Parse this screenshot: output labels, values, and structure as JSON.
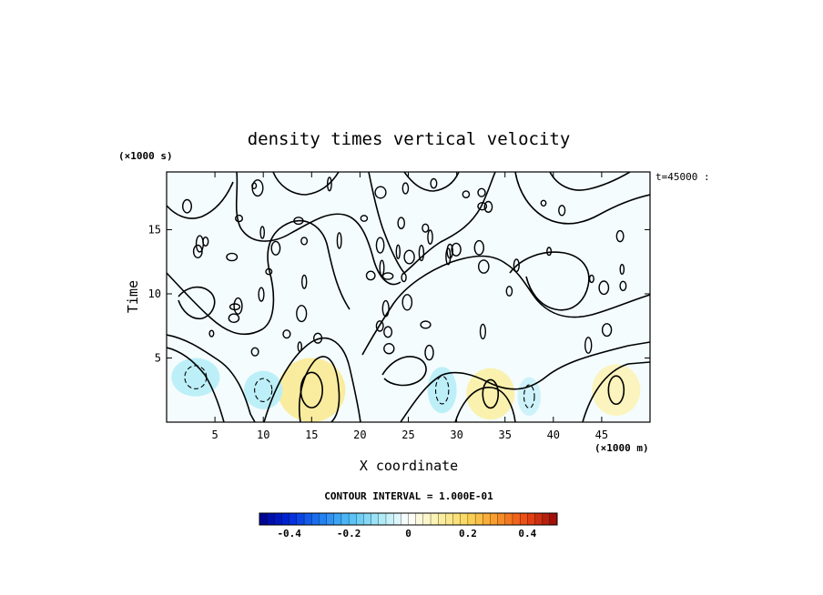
{
  "chart_data": {
    "type": "heatmap",
    "title": "density times vertical velocity",
    "xlabel": "X coordinate",
    "ylabel": "Time",
    "x_unit": "(×1000 m)",
    "y_unit": "(×1000 s)",
    "time_label": "t=45000 :",
    "contour_interval_label": "CONTOUR INTERVAL = 1.000E-01",
    "xlim": [
      0,
      50
    ],
    "ylim": [
      0,
      19.5
    ],
    "x_ticks": [
      5,
      10,
      15,
      20,
      25,
      30,
      35,
      40,
      45
    ],
    "y_ticks": [
      5,
      10,
      15
    ],
    "x_tick_labels": [
      "5",
      "10",
      "15",
      "20",
      "25",
      "30",
      "35",
      "40",
      "45"
    ],
    "y_tick_labels": [
      "5",
      "10",
      "15"
    ],
    "colorbar": {
      "min": -0.5,
      "max": 0.5,
      "ticks": [
        -0.4,
        -0.2,
        0,
        0.2,
        0.4
      ],
      "tick_labels": [
        "-0.4",
        "-0.2",
        "0",
        "0.2",
        "0.4"
      ]
    },
    "grid": false,
    "positive_regions": [
      {
        "x": 15,
        "y": 2.5,
        "rx": 3.5,
        "ry": 2.5,
        "value": 0.12
      },
      {
        "x": 33.5,
        "y": 2.2,
        "rx": 2.5,
        "ry": 2.0,
        "value": 0.1
      },
      {
        "x": 46.5,
        "y": 2.5,
        "rx": 2.5,
        "ry": 2.0,
        "value": 0.08
      }
    ],
    "negative_regions": [
      {
        "x": 3,
        "y": 3.5,
        "rx": 2.5,
        "ry": 1.5,
        "value": -0.08
      },
      {
        "x": 10,
        "y": 2.5,
        "rx": 2.0,
        "ry": 1.5,
        "value": -0.08
      },
      {
        "x": 28.5,
        "y": 2.5,
        "rx": 1.5,
        "ry": 1.8,
        "value": -0.08
      },
      {
        "x": 37.5,
        "y": 2.0,
        "rx": 1.2,
        "ry": 1.5,
        "value": -0.06
      }
    ]
  }
}
